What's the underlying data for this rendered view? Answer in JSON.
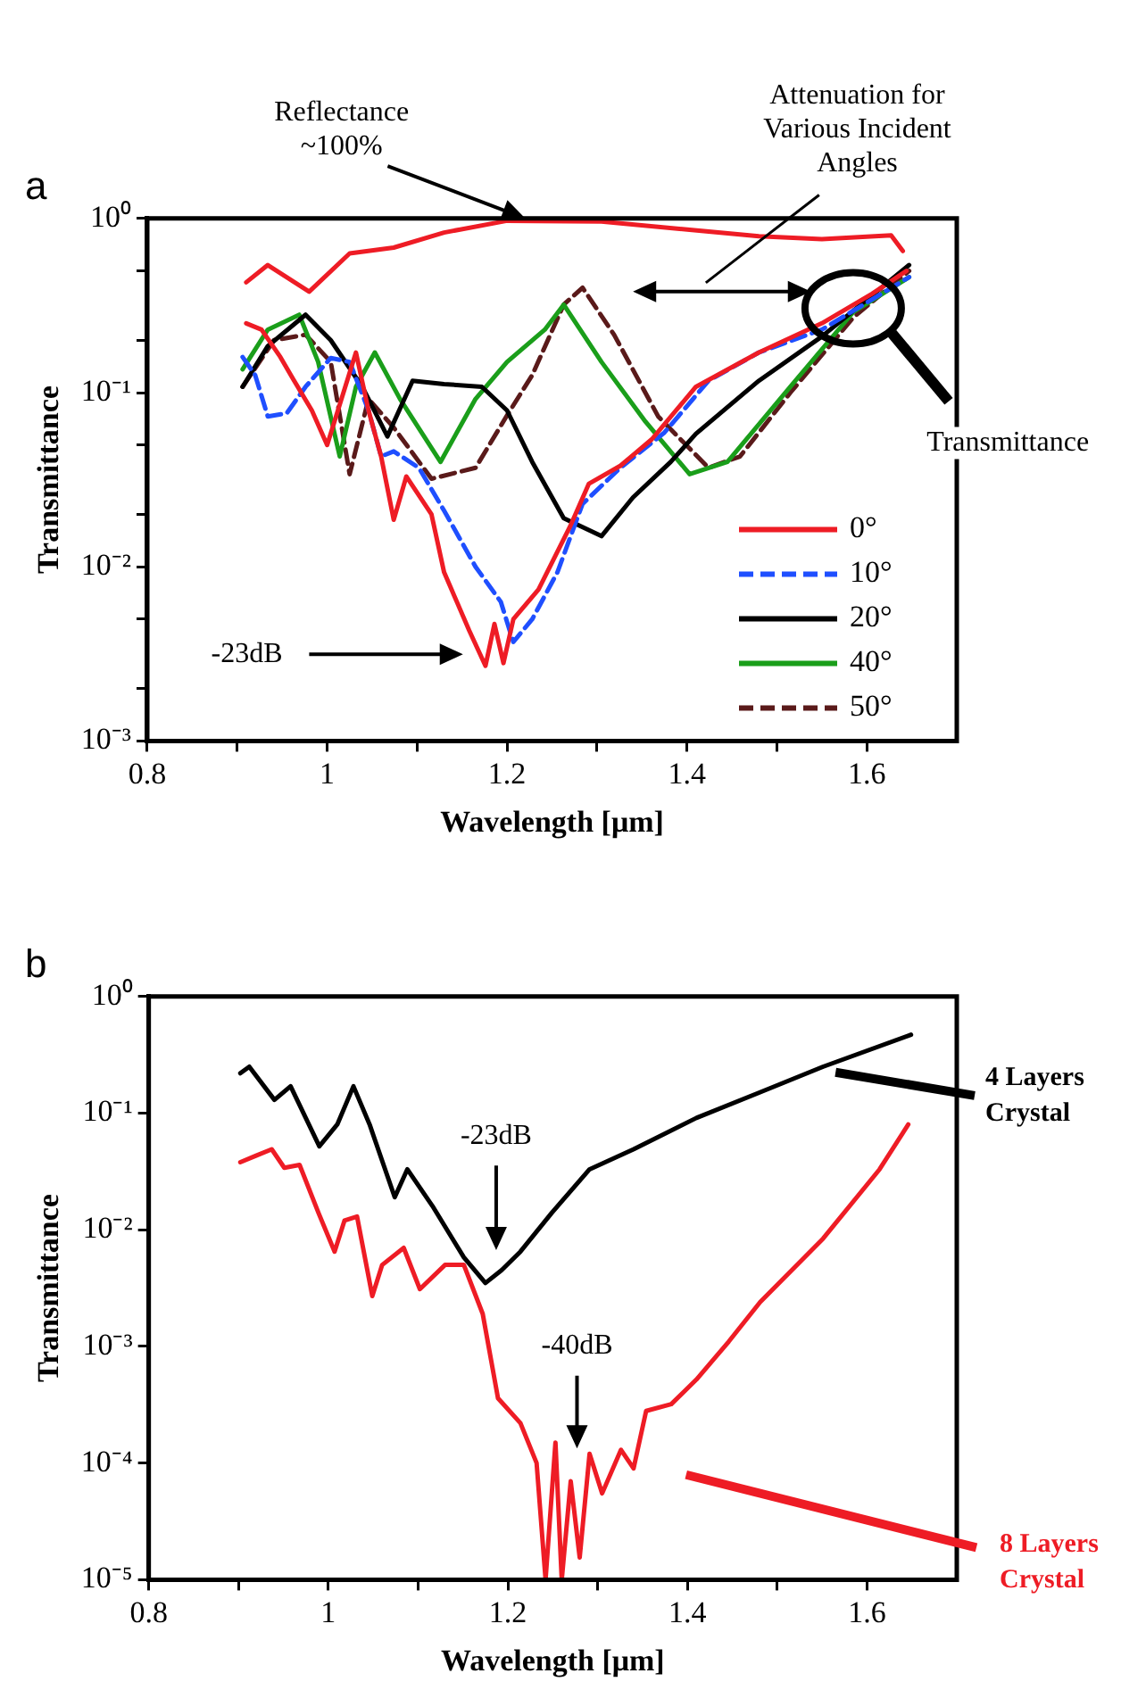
{
  "chart_data": [
    {
      "type": "line",
      "title": "a",
      "xlabel": "Wavelength [μm]",
      "ylabel": "Transmittance",
      "log": "y",
      "xlim": [
        0.8,
        1.7
      ],
      "ylim": [
        0.001,
        1
      ],
      "xticks": [
        0.8,
        {
          "value": 0.9,
          "label": null
        },
        1,
        {
          "value": 1.1,
          "label": null
        },
        1.2,
        {
          "value": 1.3,
          "label": null
        },
        1.4,
        {
          "value": 1.5,
          "label": null
        },
        1.6
      ],
      "yticks": [
        {
          "value": 0.001,
          "label": "10⁻³"
        },
        {
          "value": 0.002,
          "label": null
        },
        {
          "value": 0.005,
          "label": null
        },
        {
          "value": 0.01,
          "label": "10⁻²"
        },
        {
          "value": 0.02,
          "label": null
        },
        {
          "value": 0.05,
          "label": null
        },
        {
          "value": 0.1,
          "label": "10⁻¹"
        },
        {
          "value": 0.2,
          "label": null
        },
        {
          "value": 0.5,
          "label": null
        },
        {
          "value": 1,
          "label": "10⁰"
        }
      ],
      "legend": "bottom right",
      "annotations": [
        "Reflectance\n~100%",
        "Attenuation for\nVarious Incident\nAngles",
        "Transmittance",
        "-23dB"
      ],
      "series": [
        {
          "color": "#ee1c25",
          "x": [
            0.91,
            0.934,
            0.98,
            1.025,
            1.074,
            1.13,
            1.2,
            1.305,
            1.403,
            1.48,
            1.55,
            1.627,
            1.64
          ],
          "values": [
            0.43,
            0.54,
            0.38,
            0.63,
            0.68,
            0.83,
            0.97,
            0.96,
            0.86,
            0.79,
            0.76,
            0.8,
            0.65
          ]
        },
        {
          "name": "0°",
          "color": "#ee1c25",
          "x": [
            0.91,
            0.927,
            0.948,
            0.962,
            0.983,
            1.0,
            1.032,
            1.046,
            1.06,
            1.074,
            1.088,
            1.116,
            1.13,
            1.158,
            1.176,
            1.186,
            1.196,
            1.207,
            1.235,
            1.27,
            1.291,
            1.326,
            1.361,
            1.41,
            1.48,
            1.55,
            1.606,
            1.644
          ],
          "values": [
            0.25,
            0.23,
            0.16,
            0.12,
            0.079,
            0.05,
            0.17,
            0.079,
            0.043,
            0.0186,
            0.033,
            0.02,
            0.0093,
            0.0043,
            0.0027,
            0.0047,
            0.0028,
            0.005,
            0.0074,
            0.017,
            0.03,
            0.038,
            0.054,
            0.108,
            0.17,
            0.25,
            0.37,
            0.5
          ]
        },
        {
          "name": "10°",
          "color": "#1f4fff",
          "line_style": "dashed",
          "x": [
            0.906,
            0.92,
            0.934,
            0.955,
            0.976,
            1.004,
            1.025,
            1.046,
            1.06,
            1.074,
            1.102,
            1.13,
            1.165,
            1.193,
            1.207,
            1.228,
            1.256,
            1.284,
            1.326,
            1.375,
            1.424,
            1.48,
            1.55,
            1.647
          ],
          "values": [
            0.16,
            0.126,
            0.073,
            0.076,
            0.108,
            0.158,
            0.15,
            0.079,
            0.043,
            0.046,
            0.037,
            0.021,
            0.01,
            0.0063,
            0.0037,
            0.005,
            0.0093,
            0.023,
            0.037,
            0.059,
            0.117,
            0.17,
            0.23,
            0.46
          ]
        },
        {
          "name": "20°",
          "color": "#000000",
          "x": [
            0.906,
            0.934,
            0.976,
            1.004,
            1.039,
            1.067,
            1.095,
            1.13,
            1.172,
            1.2,
            1.228,
            1.263,
            1.305,
            1.34,
            1.382,
            1.41,
            1.48,
            1.55,
            1.647
          ],
          "values": [
            0.108,
            0.185,
            0.28,
            0.2,
            0.108,
            0.056,
            0.117,
            0.112,
            0.108,
            0.079,
            0.04,
            0.019,
            0.015,
            0.025,
            0.04,
            0.058,
            0.117,
            0.21,
            0.54
          ]
        },
        {
          "name": "40°",
          "color": "#1a9e1a",
          "x": [
            0.906,
            0.934,
            0.969,
            0.99,
            1.014,
            1.032,
            1.053,
            1.081,
            1.126,
            1.165,
            1.2,
            1.242,
            1.263,
            1.305,
            1.354,
            1.403,
            1.445,
            1.515,
            1.585,
            1.647
          ],
          "values": [
            0.136,
            0.23,
            0.28,
            0.15,
            0.043,
            0.108,
            0.17,
            0.092,
            0.04,
            0.092,
            0.15,
            0.23,
            0.32,
            0.15,
            0.068,
            0.034,
            0.04,
            0.108,
            0.29,
            0.46
          ]
        },
        {
          "name": "50°",
          "color": "#5a1a1a",
          "line_style": "dashed",
          "x": [
            0.906,
            0.941,
            0.976,
            1.004,
            1.025,
            1.046,
            1.074,
            1.116,
            1.165,
            1.2,
            1.228,
            1.263,
            1.284,
            1.319,
            1.368,
            1.424,
            1.459,
            1.515,
            1.585,
            1.647
          ],
          "values": [
            0.108,
            0.2,
            0.215,
            0.15,
            0.034,
            0.092,
            0.063,
            0.032,
            0.037,
            0.074,
            0.126,
            0.32,
            0.4,
            0.215,
            0.073,
            0.037,
            0.043,
            0.1,
            0.27,
            0.5
          ]
        }
      ]
    },
    {
      "type": "line",
      "title": "b",
      "xlabel": "Wavelength [μm]",
      "ylabel": "Transmittance",
      "log": "y",
      "xlim": [
        0.8,
        1.7
      ],
      "ylim": [
        1e-05,
        1
      ],
      "xticks": [
        0.8,
        {
          "value": 0.9,
          "label": null
        },
        1,
        {
          "value": 1.1,
          "label": null
        },
        1.2,
        {
          "value": 1.3,
          "label": null
        },
        1.4,
        {
          "value": 1.5,
          "label": null
        },
        1.6
      ],
      "yticks": [
        {
          "value": 1e-05,
          "label": "10⁻⁵"
        },
        {
          "value": 0.0001,
          "label": "10⁻⁴"
        },
        {
          "value": 0.001,
          "label": "10⁻³"
        },
        {
          "value": 0.01,
          "label": "10⁻²"
        },
        {
          "value": 0.1,
          "label": "10⁻¹"
        },
        {
          "value": 1,
          "label": "10⁰"
        }
      ],
      "annotations": [
        "-23dB",
        "-40dB"
      ],
      "series": [
        {
          "name": "4 Layers\nCrystal",
          "color": "#000000",
          "x": [
            0.902,
            0.912,
            0.94,
            0.958,
            0.99,
            1.01,
            1.028,
            1.046,
            1.074,
            1.088,
            1.116,
            1.151,
            1.175,
            1.193,
            1.214,
            1.249,
            1.291,
            1.34,
            1.41,
            1.48,
            1.551,
            1.649
          ],
          "values": [
            0.22,
            0.25,
            0.13,
            0.17,
            0.052,
            0.08,
            0.17,
            0.08,
            0.019,
            0.033,
            0.016,
            0.0058,
            0.0035,
            0.0045,
            0.0065,
            0.014,
            0.033,
            0.049,
            0.091,
            0.15,
            0.25,
            0.47
          ]
        },
        {
          "name": "8 Layers\nCrystal",
          "color": "#ee1c25",
          "x": [
            0.902,
            0.919,
            0.937,
            0.951,
            0.968,
            0.989,
            1.007,
            1.018,
            1.032,
            1.049,
            1.06,
            1.084,
            1.102,
            1.13,
            1.151,
            1.172,
            1.189,
            1.214,
            1.232,
            1.242,
            1.253,
            1.26,
            1.27,
            1.28,
            1.291,
            1.305,
            1.326,
            1.34,
            1.354,
            1.382,
            1.41,
            1.446,
            1.481,
            1.551,
            1.614,
            1.646
          ],
          "values": [
            0.038,
            0.043,
            0.049,
            0.034,
            0.036,
            0.014,
            0.0065,
            0.012,
            0.013,
            0.0027,
            0.005,
            0.007,
            0.0031,
            0.005,
            0.005,
            0.0019,
            0.00036,
            0.00022,
            0.0001,
            1e-05,
            0.00015,
            1e-05,
            7e-05,
            1.55e-05,
            0.00012,
            5.5e-05,
            0.00013,
            9e-05,
            0.00028,
            0.00032,
            0.00052,
            0.0011,
            0.0024,
            0.0084,
            0.033,
            0.08
          ]
        }
      ]
    }
  ]
}
